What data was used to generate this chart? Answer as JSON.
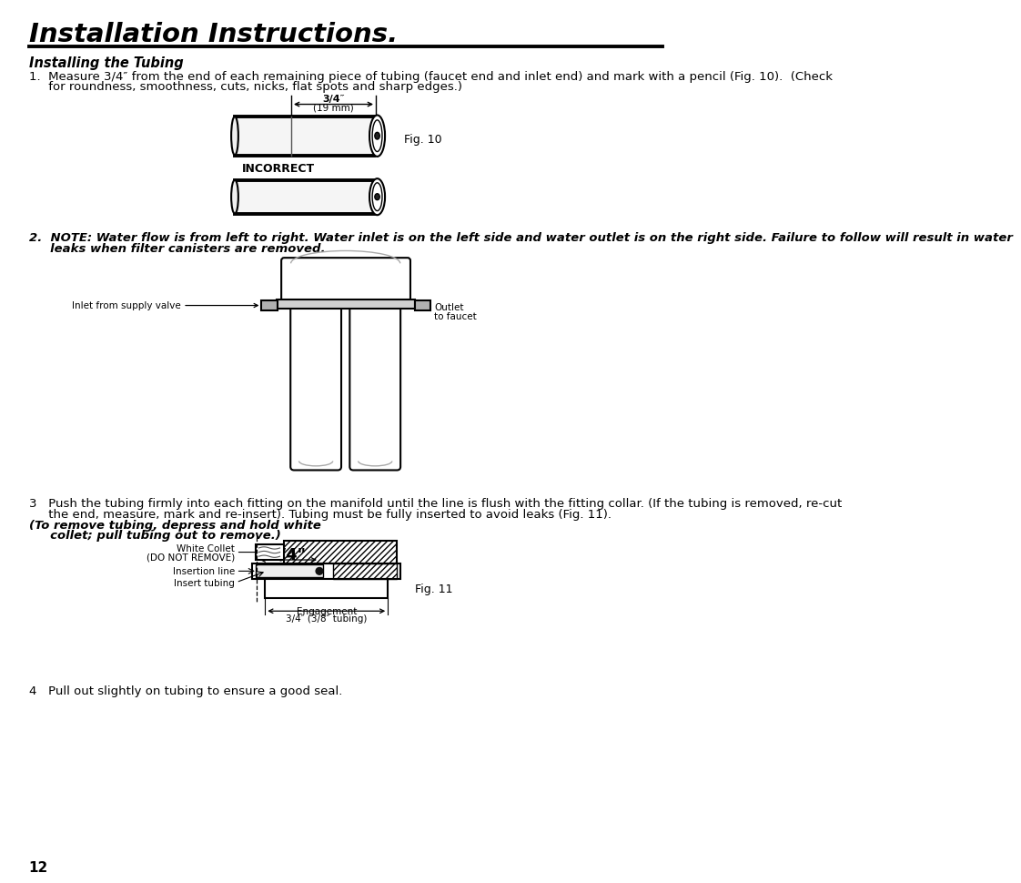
{
  "title": "Installation Instructions.",
  "subtitle": "Installing the Tubing",
  "background_color": "#ffffff",
  "text_color": "#000000",
  "page_number": "12",
  "fig10_label": "Fig. 10",
  "fig11_label": "Fig. 11",
  "incorrect_label": "INCORRECT",
  "step1_line1": "1.  Measure 3/4″ from the end of each remaining piece of tubing (faucet end and inlet end) and mark with a pencil (Fig. 10).  (Check",
  "step1_line2": "     for roundness, smoothness, cuts, nicks, flat spots and sharp edges.)",
  "step2_line1": "2.  NOTE: Water flow is from left to right. Water inlet is on the left side and water outlet is on the right side. Failure to follow will result in water",
  "step2_line2": "     leaks when filter canisters are removed.",
  "step3_line1": "3   Push the tubing firmly into each fitting on the manifold until the line is flush with the fitting collar. (If the tubing is removed, re-cut",
  "step3_line2": "     the end, measure, mark and re-insert). Tubing must be fully inserted to avoid leaks (Fig. 11). ",
  "step3_line3": "     collet; pull tubing out to remove.)",
  "step3_bold": "(To remove tubing, depress and hold white",
  "step4_text": "4   Pull out slightly on tubing to ensure a good seal.",
  "dim_label1": "3/4″",
  "dim_label2": "(19 mm)",
  "inlet_label": "Inlet from supply valve",
  "outlet_line1": "Outlet",
  "outlet_line2": "to faucet",
  "collet_line1": "White Collet",
  "collet_line2": "(DO NOT REMOVE)",
  "insertion_line_label": "Insertion line",
  "insert_tubing_label": "Insert tubing",
  "engagement_line1": "Engagement",
  "engagement_line2": "3/4″ (3/8″ tubing)"
}
